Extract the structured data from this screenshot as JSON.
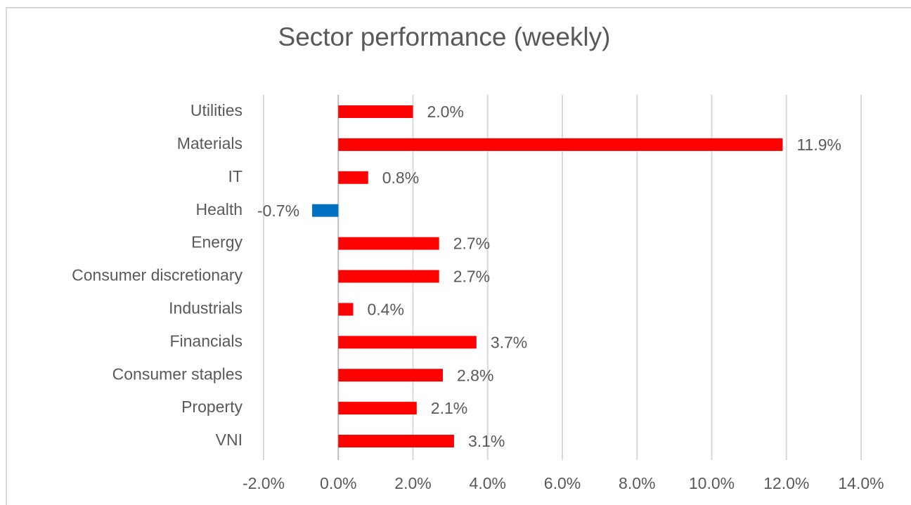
{
  "chart_data": {
    "type": "hbar",
    "title": "Sector performance (weekly)",
    "categories": [
      "Utilities",
      "Materials",
      "IT",
      "Health",
      "Energy",
      "Consumer discretionary",
      "Industrials",
      "Financials",
      "Consumer staples",
      "Property",
      "VNI"
    ],
    "values": [
      2.0,
      11.9,
      0.8,
      -0.7,
      2.7,
      2.7,
      0.4,
      3.7,
      2.8,
      2.1,
      3.1
    ],
    "value_labels": [
      "2.0%",
      "11.9%",
      "0.8%",
      "-0.7%",
      "2.7%",
      "2.7%",
      "0.4%",
      "3.7%",
      "2.8%",
      "2.1%",
      "3.1%"
    ],
    "colors": [
      "#ff0000",
      "#ff0000",
      "#ff0000",
      "#0070c0",
      "#ff0000",
      "#ff0000",
      "#ff0000",
      "#ff0000",
      "#ff0000",
      "#ff0000",
      "#ff0000"
    ],
    "xlim": [
      -2,
      14
    ],
    "xticks": [
      {
        "value": -2,
        "label": "-2.0%"
      },
      {
        "value": 0,
        "label": "0.0%"
      },
      {
        "value": 2,
        "label": "2.0%"
      },
      {
        "value": 4,
        "label": "4.0%"
      },
      {
        "value": 6,
        "label": "6.0%"
      },
      {
        "value": 8,
        "label": "8.0%"
      },
      {
        "value": 10,
        "label": "10.0%"
      },
      {
        "value": 12,
        "label": "12.0%"
      },
      {
        "value": 14,
        "label": "14.0%"
      }
    ],
    "grid": true
  }
}
